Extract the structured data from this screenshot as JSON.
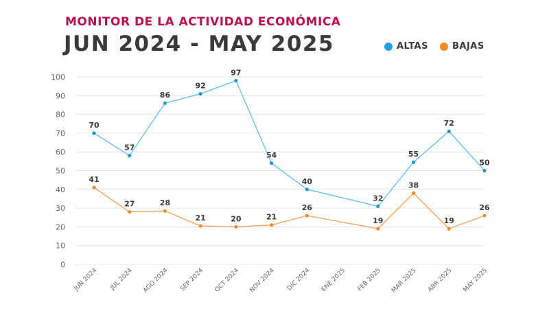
{
  "header": {
    "subtitle": "MONITOR DE LA ACTIVIDAD ECONÓMICA",
    "title": "JUN 2024 - MAY 2025"
  },
  "legend": [
    {
      "label": "ALTAS",
      "color": "#1fa3e0"
    },
    {
      "label": "BAJAS",
      "color": "#f28c28"
    }
  ],
  "chart_data": {
    "type": "line",
    "title": "JUN 2024 - MAY 2025",
    "categories": [
      "JUN 2024",
      "JUL 2024",
      "AGO 2024",
      "SEP 2024",
      "OCT 2024",
      "NOV 2024",
      "DIC 2024",
      "ENE 2025",
      "FEB 2025",
      "MAR 2025",
      "ABR 2025",
      "MAY 2025"
    ],
    "series": [
      {
        "name": "ALTAS",
        "color": "#5bc0e8",
        "values": [
          70,
          57,
          86,
          92,
          97,
          54,
          40,
          null,
          32,
          55,
          72,
          50
        ],
        "plot": [
          70,
          58,
          86,
          91,
          98,
          54,
          40,
          null,
          31,
          54.5,
          71,
          50
        ]
      },
      {
        "name": "BAJAS",
        "color": "#f5a05a",
        "values": [
          41,
          27,
          28,
          21,
          20,
          21,
          26,
          null,
          19,
          38,
          19,
          26
        ],
        "plot": [
          41,
          28,
          28.5,
          20.5,
          20,
          21,
          26,
          null,
          19,
          38,
          19,
          26
        ]
      }
    ],
    "ylim": [
      0,
      100
    ],
    "yticks": [
      0,
      10,
      20,
      30,
      40,
      50,
      60,
      70,
      80,
      90,
      100
    ],
    "grid": true,
    "legend_position": "top-right"
  }
}
